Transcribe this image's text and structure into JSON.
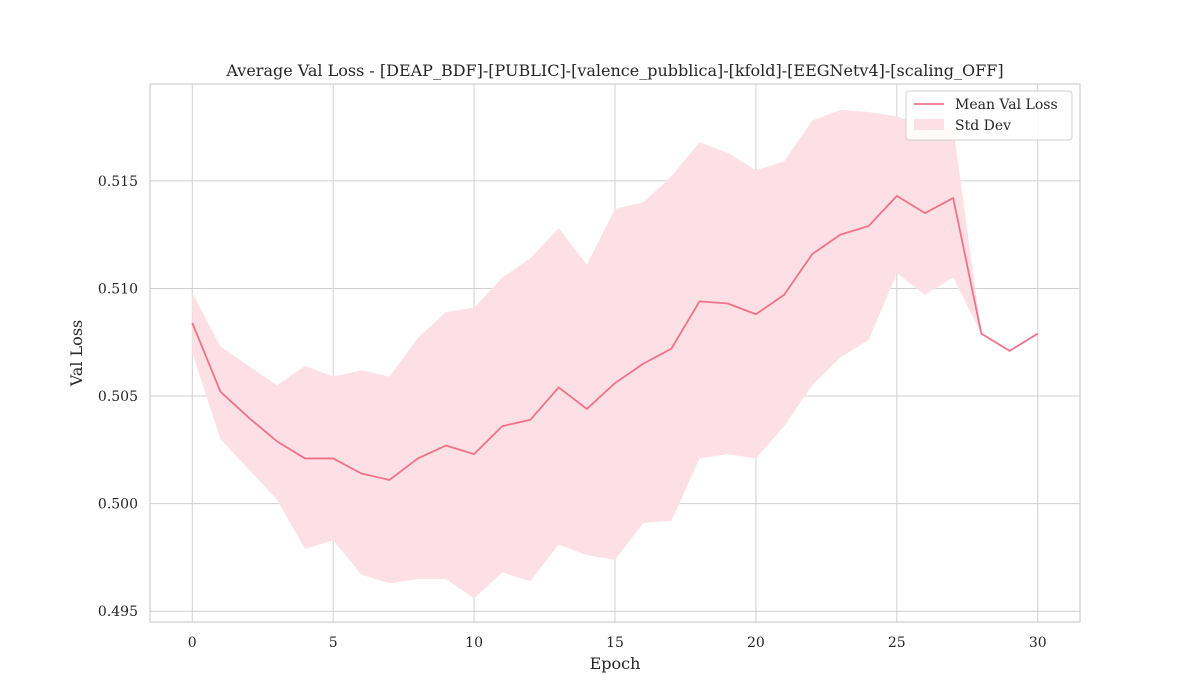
{
  "chart_data": {
    "type": "line",
    "title": "Average Val Loss - [DEAP_BDF]-[PUBLIC]-[valence_pubblica]-[kfold]-[EEGNetv4]-[scaling_OFF]",
    "xlabel": "Epoch",
    "ylabel": "Val Loss",
    "xlim": [
      -1.5,
      31.5
    ],
    "ylim": [
      0.4945,
      0.5195
    ],
    "xticks": [
      0,
      5,
      10,
      15,
      20,
      25,
      30
    ],
    "yticks": [
      0.495,
      0.5,
      0.505,
      0.51,
      0.515
    ],
    "xtick_labels": [
      "0",
      "5",
      "10",
      "15",
      "20",
      "25",
      "30"
    ],
    "ytick_labels": [
      "0.495",
      "0.500",
      "0.505",
      "0.510",
      "0.515"
    ],
    "grid": true,
    "legend_position": "top-right",
    "x": [
      0,
      1,
      2,
      3,
      4,
      5,
      6,
      7,
      8,
      9,
      10,
      11,
      12,
      13,
      14,
      15,
      16,
      17,
      18,
      19,
      20,
      21,
      22,
      23,
      24,
      25,
      26,
      27,
      28,
      29,
      30
    ],
    "series": [
      {
        "name": "Mean Val Loss",
        "color": "#f0728a",
        "values": [
          0.5084,
          0.5052,
          0.504,
          0.5029,
          0.5021,
          0.5021,
          0.5014,
          0.5011,
          0.5021,
          0.5027,
          0.5023,
          0.5036,
          0.5039,
          0.5054,
          0.5044,
          0.5056,
          0.5065,
          0.5072,
          0.5094,
          0.5093,
          0.5088,
          0.5097,
          0.5116,
          0.5125,
          0.5129,
          0.5143,
          0.5135,
          0.5142,
          0.5079,
          0.5071,
          0.5079
        ]
      },
      {
        "name": "Std Dev",
        "type": "band",
        "color": "#fde0e5",
        "upper": [
          0.5098,
          0.5073,
          0.5064,
          0.5055,
          0.5064,
          0.5059,
          0.5062,
          0.5059,
          0.5077,
          0.5089,
          0.5091,
          0.5105,
          0.5114,
          0.5128,
          0.5111,
          0.5137,
          0.514,
          0.5152,
          0.5168,
          0.5163,
          0.5155,
          0.5159,
          0.5178,
          0.5183,
          0.5182,
          0.518,
          0.5175,
          0.5175,
          0.5079,
          0.5071,
          0.5079
        ],
        "lower": [
          0.507,
          0.503,
          0.5016,
          0.5002,
          0.4979,
          0.4983,
          0.4967,
          0.4963,
          0.4965,
          0.4965,
          0.4956,
          0.4968,
          0.4964,
          0.4981,
          0.4976,
          0.4974,
          0.4991,
          0.4992,
          0.5021,
          0.5023,
          0.5021,
          0.5036,
          0.5055,
          0.5068,
          0.5076,
          0.5107,
          0.5097,
          0.5105,
          0.5079,
          0.5071,
          0.5079
        ]
      }
    ]
  }
}
